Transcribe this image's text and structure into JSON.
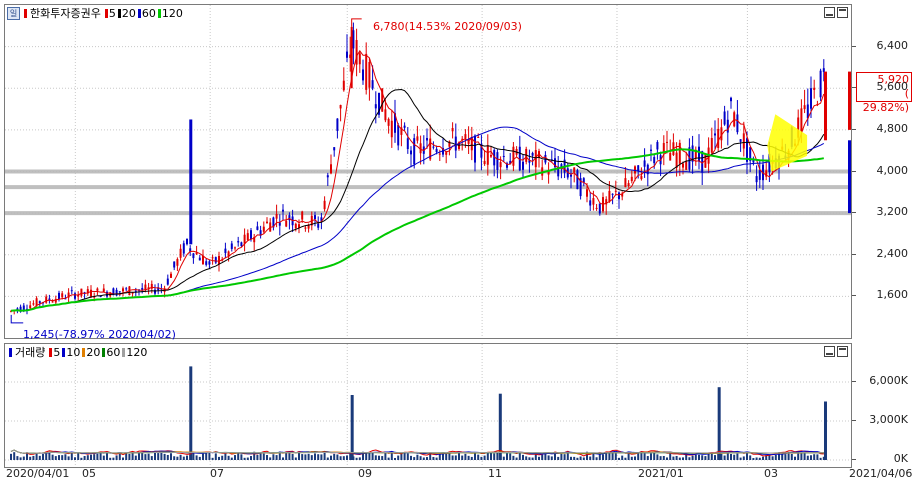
{
  "price_panel": {
    "legend": {
      "title": "한화투자증권우",
      "ma_items": [
        {
          "label": "5",
          "color": "#e00000"
        },
        {
          "label": "20",
          "color": "#000000"
        },
        {
          "label": "60",
          "color": "#0000c8"
        },
        {
          "label": "120",
          "color": "#00c800"
        }
      ],
      "icon_glyph": "일"
    },
    "high_annotation": "6,780(14.53% 2020/09/03)",
    "low_annotation": "1,245(-78.97% 2020/04/02)",
    "current_price": "5,920",
    "current_change": "( 29.82%)",
    "y_ticks": [
      "6,400",
      "5,600",
      "4,800",
      "4,000",
      "3,200",
      "2,400",
      "1,600"
    ]
  },
  "volume_panel": {
    "legend": {
      "title": "거래량",
      "ma_items": [
        {
          "label": "5",
          "color": "#e00000"
        },
        {
          "label": "10",
          "color": "#0000c8"
        },
        {
          "label": "20",
          "color": "#e08000"
        },
        {
          "label": "60",
          "color": "#008000"
        },
        {
          "label": "120",
          "color": "#a0a0a0"
        }
      ]
    },
    "y_ticks": [
      "6,000K",
      "3,000K",
      "0K"
    ]
  },
  "x_labels": [
    "2020/04/01",
    "05",
    "07",
    "09",
    "11",
    "2021/01",
    "03",
    "2021/04/06"
  ],
  "colors": {
    "up": "#e00000",
    "down": "#0000c8",
    "ma5": "#e00000",
    "ma20": "#000000",
    "ma60": "#0000c8",
    "ma120": "#00c800",
    "highlight": "#ffff00"
  },
  "chart_data": {
    "type": "candlestick",
    "x_range": [
      "2020/04/01",
      "2021/04/06"
    ],
    "y_range": [
      800,
      7200
    ],
    "high": {
      "value": 6780,
      "date": "2020/09/03",
      "change_pct": 14.53
    },
    "low": {
      "value": 1245,
      "date": "2020/04/02",
      "change_pct": -78.97
    },
    "last": {
      "value": 5920,
      "change_pct": 29.82
    },
    "close_series": [
      {
        "date": "2020/04/01",
        "value": 1300
      },
      {
        "date": "2020/04/15",
        "value": 1500
      },
      {
        "date": "2020/05/01",
        "value": 1650
      },
      {
        "date": "2020/05/20",
        "value": 1700
      },
      {
        "date": "2020/06/10",
        "value": 1750
      },
      {
        "date": "2020/06/20",
        "value": 2600
      },
      {
        "date": "2020/07/01",
        "value": 2200
      },
      {
        "date": "2020/07/15",
        "value": 2600
      },
      {
        "date": "2020/08/01",
        "value": 3150
      },
      {
        "date": "2020/08/20",
        "value": 3000
      },
      {
        "date": "2020/09/03",
        "value": 6500
      },
      {
        "date": "2020/09/20",
        "value": 5000
      },
      {
        "date": "2020/10/01",
        "value": 4400
      },
      {
        "date": "2020/10/20",
        "value": 4600
      },
      {
        "date": "2020/11/05",
        "value": 4300
      },
      {
        "date": "2020/11/25",
        "value": 4200
      },
      {
        "date": "2020/12/10",
        "value": 4000
      },
      {
        "date": "2020/12/25",
        "value": 3300
      },
      {
        "date": "2021/01/05",
        "value": 3700
      },
      {
        "date": "2021/01/20",
        "value": 4400
      },
      {
        "date": "2021/02/10",
        "value": 4200
      },
      {
        "date": "2021/02/22",
        "value": 5200
      },
      {
        "date": "2021/03/05",
        "value": 3900
      },
      {
        "date": "2021/03/20",
        "value": 4500
      },
      {
        "date": "2021/04/06",
        "value": 5920
      }
    ],
    "volume_y_range": [
      0,
      8000
    ],
    "volume_spikes": [
      {
        "date": "2020/06/22",
        "value": 7200
      },
      {
        "date": "2020/09/03",
        "value": 5000
      },
      {
        "date": "2020/11/09",
        "value": 5100
      },
      {
        "date": "2021/02/16",
        "value": 5600
      },
      {
        "date": "2021/04/06",
        "value": 4500
      }
    ]
  }
}
